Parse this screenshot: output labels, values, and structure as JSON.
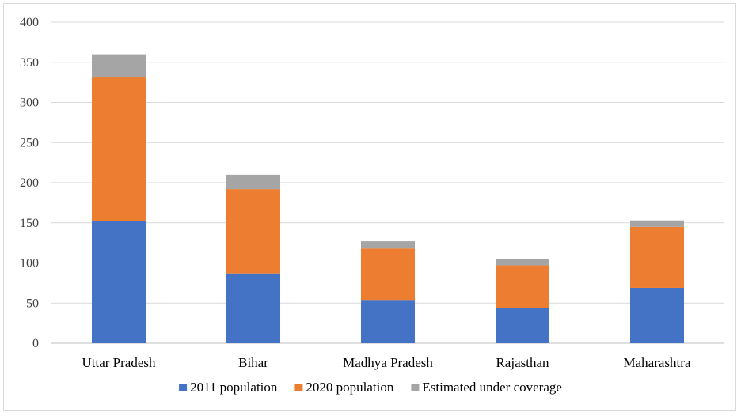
{
  "chart_data": {
    "type": "bar",
    "stacked": true,
    "categories": [
      "Uttar Pradesh",
      "Bihar",
      "Madhya Pradesh",
      "Rajasthan",
      "Maharashtra"
    ],
    "series": [
      {
        "name": "2011 population",
        "color": "#4472c4",
        "values": [
          152,
          87,
          54,
          44,
          69
        ]
      },
      {
        "name": "2020 population",
        "color": "#ed7d31",
        "values": [
          180,
          105,
          64,
          53,
          76
        ]
      },
      {
        "name": "Estimated under coverage",
        "color": "#a5a5a5",
        "values": [
          28,
          18,
          9,
          8,
          8
        ]
      }
    ],
    "ylim": [
      0,
      400
    ],
    "yticks": [
      0,
      50,
      100,
      150,
      200,
      250,
      300,
      350,
      400
    ],
    "grid": true,
    "legend_position": "bottom"
  }
}
